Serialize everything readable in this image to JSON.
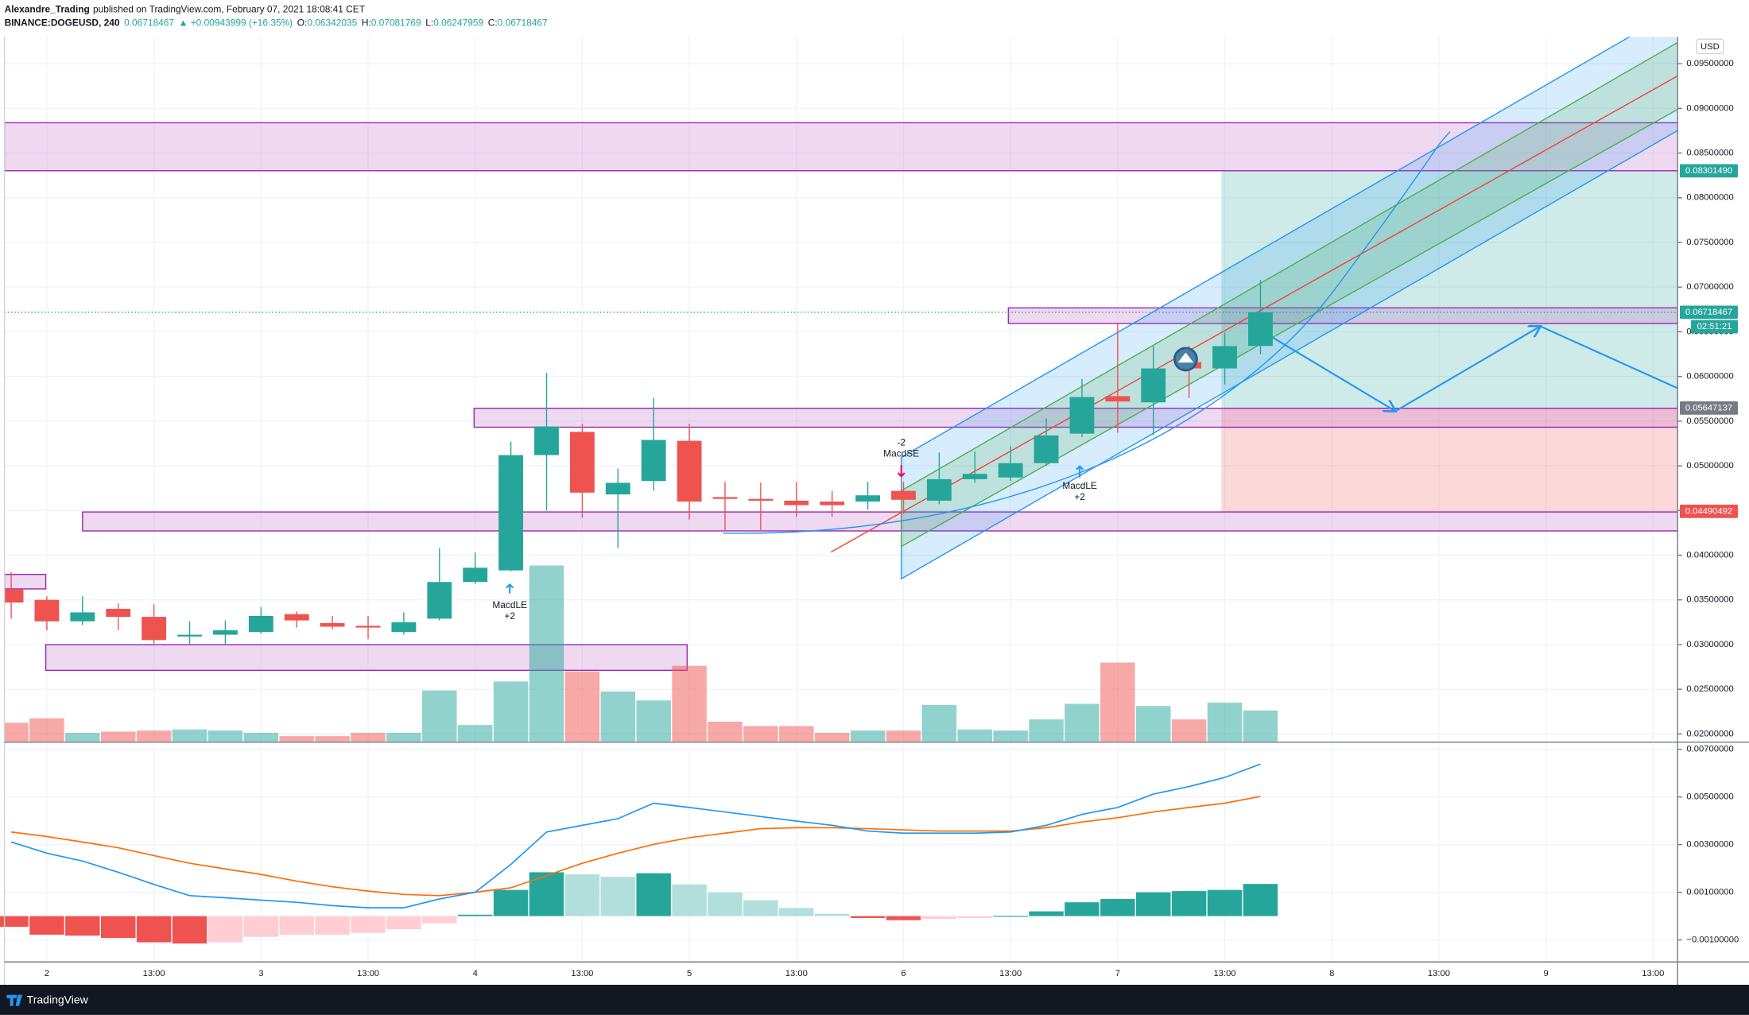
{
  "header": {
    "author": "Alexandre_Trading",
    "published": "published on TradingView.com, February 07, 2021 18:08:41 CET",
    "symbol": "BINANCE:DOGEUSD, 240",
    "change": "▲ +0.00943999 (+16.35%)",
    "ohlc_labels": [
      "O:",
      "H:",
      "L:",
      "C:"
    ],
    "currency": "USD"
  },
  "annotations": {
    "long_signal": "MacdLE",
    "long_size": "+2",
    "short_size": "-2",
    "short_signal": "MacdSE"
  },
  "footer": {
    "brand": "TradingView"
  },
  "chart_data": [
    {
      "type": "candlestick",
      "categories": [
        null,
        "2",
        null,
        null,
        "13:00",
        null,
        null,
        "3",
        null,
        null,
        "13:00",
        null,
        null,
        "4",
        null,
        null,
        "13:00",
        null,
        null,
        "5",
        null,
        null,
        "13:00",
        null,
        null,
        "6",
        null,
        null,
        "13:00",
        null,
        null,
        "7",
        null,
        null,
        "13:00",
        null,
        null,
        "8",
        null,
        null,
        "13:00",
        null,
        null,
        "9",
        null,
        null,
        "13:00"
      ],
      "open": [
        0.0362,
        0.035,
        0.0326,
        0.034,
        0.0331,
        0.0309,
        0.0311,
        0.0314,
        0.0334,
        0.0324,
        0.0321,
        0.0314,
        0.0329,
        0.037,
        0.0383,
        0.0512,
        0.0538,
        0.0468,
        0.0483,
        0.0528,
        0.0465,
        0.0463,
        0.0461,
        0.046,
        0.046,
        0.0472,
        0.0461,
        0.0485,
        0.0487,
        0.0503,
        0.0536,
        0.0578,
        0.0571,
        0.0616,
        0.0609,
        0.06342035,
        null,
        null,
        null,
        null,
        null,
        null,
        null,
        null,
        null,
        null,
        null
      ],
      "high": [
        0.0381,
        0.0354,
        0.0354,
        0.0346,
        0.0345,
        0.0326,
        0.0327,
        0.0342,
        0.0337,
        0.0332,
        0.0332,
        0.0336,
        0.0408,
        0.0403,
        0.0527,
        0.0604,
        0.0547,
        0.0497,
        0.0576,
        0.0547,
        0.0482,
        0.0481,
        0.0482,
        0.0472,
        0.0482,
        0.0482,
        0.0515,
        0.0516,
        0.0522,
        0.0553,
        0.0597,
        0.0659,
        0.0634,
        0.0634,
        0.0649,
        0.07081769,
        null,
        null,
        null,
        null,
        null,
        null,
        null,
        null,
        null,
        null,
        null
      ],
      "low": [
        0.0329,
        0.0316,
        0.0322,
        0.0316,
        0.0301,
        0.03,
        0.03,
        0.0312,
        0.0319,
        0.0317,
        0.0306,
        0.0311,
        0.0327,
        0.0368,
        0.0382,
        0.045,
        0.0442,
        0.0408,
        0.0472,
        0.044,
        0.0427,
        0.0427,
        0.0443,
        0.0443,
        0.0451,
        0.0446,
        0.0457,
        0.0481,
        0.0483,
        0.05,
        0.0532,
        0.0537,
        0.0534,
        0.0576,
        0.0591,
        0.06247959,
        null,
        null,
        null,
        null,
        null,
        null,
        null,
        null,
        null,
        null,
        null
      ],
      "close": [
        0.0347,
        0.0326,
        0.0336,
        0.0331,
        0.0305,
        0.0311,
        0.0316,
        0.0332,
        0.0327,
        0.032,
        0.0319,
        0.0325,
        0.037,
        0.0386,
        0.0512,
        0.0544,
        0.047,
        0.0481,
        0.0529,
        0.046,
        0.0463,
        0.0461,
        0.0456,
        0.0456,
        0.0467,
        0.0462,
        0.0485,
        0.0491,
        0.0503,
        0.0534,
        0.0577,
        0.0572,
        0.0609,
        0.0609,
        0.0634,
        0.06718467,
        null,
        null,
        null,
        null,
        null,
        null,
        null,
        null,
        null,
        null,
        null
      ],
      "volume": [
        17,
        21,
        8,
        9,
        10,
        11,
        10,
        8,
        5,
        5,
        8,
        8,
        46,
        15,
        54,
        158,
        63,
        45,
        37,
        68,
        18,
        14,
        14,
        8,
        10,
        10,
        33,
        11,
        10,
        20,
        34,
        71,
        32,
        20,
        35,
        28,
        null,
        null,
        null,
        null,
        null,
        null,
        null,
        null,
        null,
        null,
        null
      ],
      "ylim": [
        0.01913,
        0.098
      ],
      "yticks": [
        {
          "value": 0.02,
          "label": "0.02000000"
        },
        {
          "value": 0.025,
          "label": "0.02500000"
        },
        {
          "value": 0.03,
          "label": "0.03000000"
        },
        {
          "value": 0.035,
          "label": "0.03500000"
        },
        {
          "value": 0.04,
          "label": "0.04000000"
        },
        {
          "value": 0.045,
          "label": "0.04500000"
        },
        {
          "value": 0.05,
          "label": "0.05000000"
        },
        {
          "value": 0.055,
          "label": "0.05500000"
        },
        {
          "value": 0.06,
          "label": "0.06000000"
        },
        {
          "value": 0.065,
          "label": "0.06500000"
        },
        {
          "value": 0.07,
          "label": "0.07000000"
        },
        {
          "value": 0.075,
          "label": "0.07500000"
        },
        {
          "value": 0.08,
          "label": "0.08000000"
        },
        {
          "value": 0.085,
          "label": "0.08500000"
        },
        {
          "value": 0.09,
          "label": "0.09000000"
        },
        {
          "value": 0.095,
          "label": "0.09500000"
        }
      ],
      "price_labels": [
        {
          "value": 0.0830149,
          "label": "0.08301490",
          "color": "#26a69a"
        },
        {
          "value": 0.06718467,
          "label": "0.06718467",
          "color": "#26a69a",
          "countdown": "02:51:21"
        },
        {
          "value": 0.05647137,
          "label": "0.05647137",
          "color": "#787b86"
        },
        {
          "value": 0.04490492,
          "label": "0.04490492",
          "color": "#ef5350"
        }
      ],
      "grid": true,
      "colors": {
        "up": "#26a69a",
        "down": "#ef5350",
        "volume_up": "#26a69a",
        "volume_down": "#ef5350"
      }
    },
    {
      "type": "macd",
      "histogram": [
        -0.00045,
        -0.00078,
        -0.00082,
        -0.00092,
        -0.0011,
        -0.00115,
        -0.0011,
        -0.00087,
        -0.00078,
        -0.00078,
        -0.0007,
        -0.00055,
        -0.0003,
        6e-05,
        0.0011,
        0.00184,
        0.00175,
        0.00165,
        0.0018,
        0.00133,
        0.001,
        0.00067,
        0.00034,
        0.0001,
        -8e-05,
        -0.00017,
        -0.00012,
        -8e-05,
        1e-05,
        0.0002,
        0.00058,
        0.00072,
        0.001,
        0.00105,
        0.0011,
        0.00135,
        null,
        null,
        null,
        null,
        null,
        null,
        null,
        null,
        null,
        null,
        null
      ],
      "macd": [
        0.00311,
        0.00264,
        0.00231,
        0.00184,
        0.00133,
        0.00086,
        0.00077,
        0.00067,
        0.00058,
        0.00044,
        0.00035,
        0.00035,
        0.00072,
        0.001,
        0.00217,
        0.00353,
        0.00381,
        0.00409,
        0.00474,
        0.00456,
        0.00437,
        0.00418,
        0.00399,
        0.00381,
        0.00357,
        0.00348,
        0.00348,
        0.00348,
        0.00353,
        0.00381,
        0.00427,
        0.00456,
        0.00512,
        0.00544,
        0.00582,
        0.00638,
        null,
        null,
        null,
        null,
        null,
        null,
        null,
        null,
        null,
        null,
        null
      ],
      "signal": [
        0.00353,
        0.00334,
        0.00311,
        0.00287,
        0.00254,
        0.00222,
        0.00198,
        0.00175,
        0.00147,
        0.00123,
        0.00105,
        0.00091,
        0.00086,
        0.001,
        0.00119,
        0.0017,
        0.00222,
        0.00264,
        0.00301,
        0.00329,
        0.00348,
        0.00367,
        0.00371,
        0.00371,
        0.00367,
        0.00362,
        0.00357,
        0.00357,
        0.00357,
        0.00371,
        0.00395,
        0.00413,
        0.00437,
        0.00456,
        0.00474,
        0.00502,
        null,
        null,
        null,
        null,
        null,
        null,
        null,
        null,
        null,
        null,
        null
      ],
      "ylim": [
        -0.0019,
        0.00718
      ],
      "yticks": [
        {
          "value": 0.007,
          "label": "0.00700000"
        },
        {
          "value": 0.005,
          "label": "0.00500000"
        },
        {
          "value": 0.003,
          "label": "0.00300000"
        },
        {
          "value": 0.001,
          "label": "0.00100000"
        },
        {
          "value": -0.001,
          "label": "−0.00100000"
        }
      ],
      "grid": true,
      "colors": {
        "macd": "#2196f3",
        "signal": "#ff6d00",
        "hist_up": "#26a69a",
        "hist_up_fading": "#b2dfdb",
        "hist_down": "#ef5350",
        "hist_down_fading": "#ffcdd2"
      }
    }
  ]
}
